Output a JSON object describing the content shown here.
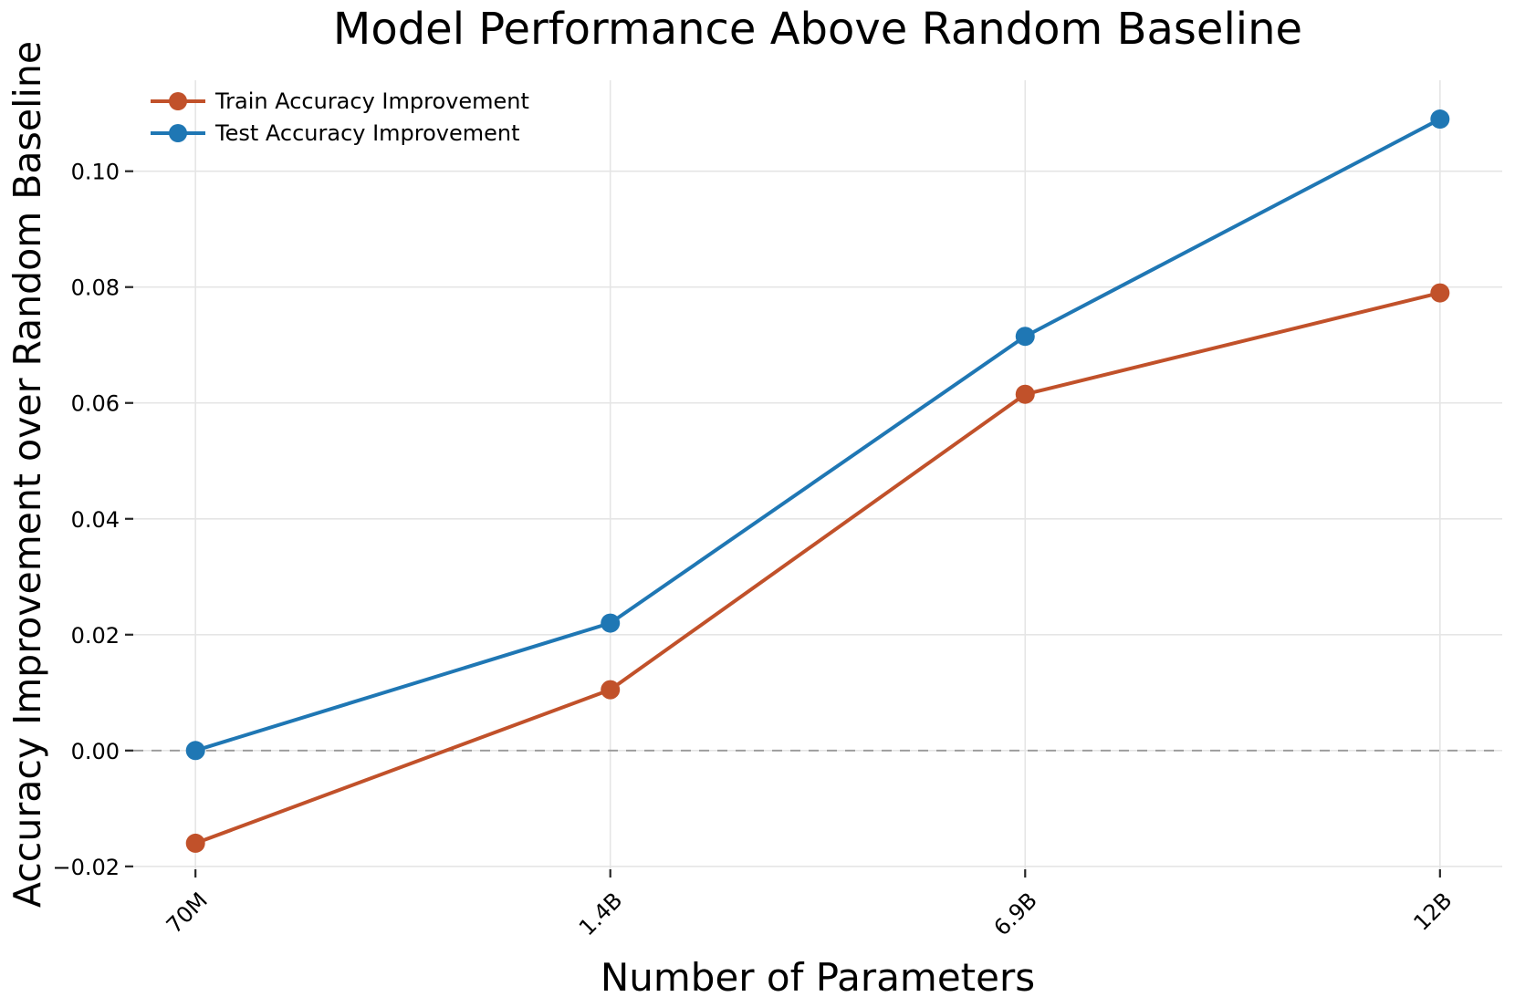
{
  "chart_data": {
    "type": "line",
    "title": "Model Performance Above Random Baseline",
    "xlabel": "Number of Parameters",
    "ylabel": "Accuracy Improvement over Random Baseline",
    "categories": [
      "70M",
      "1.4B",
      "6.9B",
      "12B"
    ],
    "series": [
      {
        "name": "Train Accuracy Improvement",
        "color": "#c1512a",
        "values": [
          -0.016,
          0.0105,
          0.0615,
          0.079
        ]
      },
      {
        "name": "Test Accuracy Improvement",
        "color": "#1f77b4",
        "values": [
          0.0,
          0.022,
          0.0715,
          0.109
        ]
      }
    ],
    "y_ticks": [
      -0.02,
      0.0,
      0.02,
      0.04,
      0.06,
      0.08,
      0.1
    ],
    "y_tick_labels": [
      "−0.02",
      "0.00",
      "0.02",
      "0.04",
      "0.06",
      "0.08",
      "0.10"
    ],
    "ylim": [
      -0.0205,
      0.1157
    ],
    "xlim": [
      -0.15,
      3.15
    ],
    "grid": true,
    "grid_color": "#e5e5e5",
    "zero_baseline": {
      "value": 0.0,
      "style": "dashed",
      "color": "#999999"
    },
    "legend_position": "upper-left",
    "marker": "circle",
    "background": "#ffffff",
    "tick_color": "#262626"
  }
}
